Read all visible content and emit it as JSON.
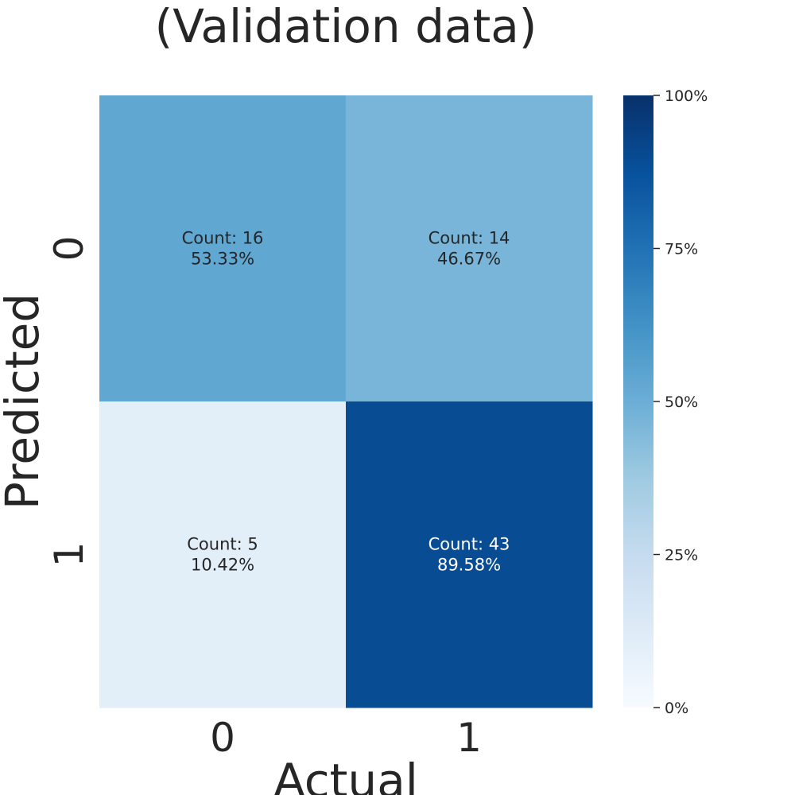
{
  "chart_data": {
    "type": "heatmap",
    "title": "(Validation data)",
    "xlabel": "Actual",
    "ylabel": "Predicted",
    "x_categories": [
      "0",
      "1"
    ],
    "y_categories": [
      "0",
      "1"
    ],
    "cells": [
      [
        {
          "count_label": "Count: 16",
          "percent_label": "53.33%",
          "value": 53.33
        },
        {
          "count_label": "Count: 14",
          "percent_label": "46.67%",
          "value": 46.67
        }
      ],
      [
        {
          "count_label": "Count: 5",
          "percent_label": "10.42%",
          "value": 10.42
        },
        {
          "count_label": "Count: 43",
          "percent_label": "89.58%",
          "value": 89.58
        }
      ]
    ],
    "colorbar": {
      "range": [
        0,
        100
      ],
      "ticks": [
        0,
        25,
        50,
        75,
        100
      ],
      "tick_labels": [
        "0%",
        "25%",
        "50%",
        "75%",
        "100%"
      ],
      "colormap": "Blues",
      "colors": [
        "#f7fbff",
        "#deebf7",
        "#c6dbef",
        "#9ecae1",
        "#6baed6",
        "#4292c6",
        "#2171b5",
        "#08519c",
        "#08306b"
      ]
    },
    "grid": false
  }
}
